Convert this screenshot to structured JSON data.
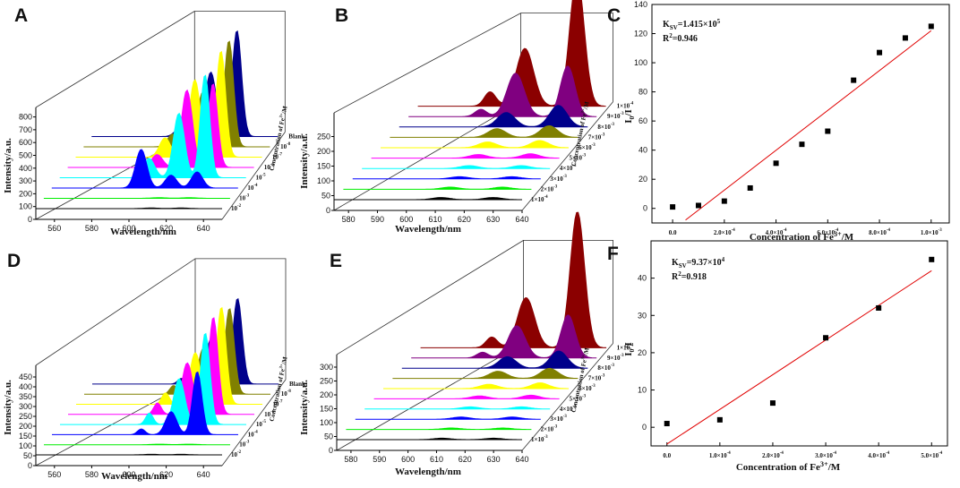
{
  "chart_data": [
    {
      "id": "A",
      "type": "waterfall",
      "title": "A",
      "xlabel": "Wavelength/nm",
      "ylabel": "Intensity/a.u.",
      "zlabel": "Concentration of Fe3+/M",
      "zlabel_parts": [
        "Concentration of Fe",
        "3+",
        "/M"
      ],
      "xlim": [
        550,
        650
      ],
      "x_ticks": [
        560,
        580,
        600,
        620,
        640
      ],
      "ylim": [
        0,
        800
      ],
      "y_ticks": [
        0,
        100,
        200,
        300,
        400,
        500,
        600,
        700,
        800
      ],
      "z_labels": [
        {
          "base": "10",
          "exp": "-2"
        },
        {
          "base": "10",
          "exp": "-3"
        },
        {
          "base": "10",
          "exp": "-4"
        },
        {
          "base": "10",
          "exp": "-5"
        },
        {
          "base": "10",
          "exp": "-6"
        },
        {
          "base": "10",
          "exp": "-7"
        },
        {
          "base": "10",
          "exp": "-8"
        },
        {
          "base": "Blank",
          "exp": ""
        }
      ],
      "z_label_series": [
        0,
        2,
        4,
        6,
        8,
        10,
        12,
        14
      ],
      "series": [
        {
          "name": "s1",
          "color": "#000000",
          "peaks": [
            [
              612,
              2,
              4
            ],
            [
              628,
              2,
              4
            ]
          ]
        },
        {
          "name": "s2",
          "color": "#00ee00",
          "peaks": [
            [
              612,
              2,
              4
            ],
            [
              628,
              2,
              4
            ]
          ]
        },
        {
          "name": "s3",
          "color": "#0000ff",
          "peaks": [
            [
              598,
              120,
              3
            ],
            [
              614,
              40,
              3
            ],
            [
              628,
              50,
              3
            ]
          ]
        },
        {
          "name": "s4",
          "color": "#00ffff",
          "peaks": [
            [
              598,
              60,
              3
            ],
            [
              614,
              200,
              3
            ],
            [
              628,
              320,
              2.5
            ]
          ]
        },
        {
          "name": "s5",
          "color": "#ff00ff",
          "peaks": [
            [
              598,
              40,
              3
            ],
            [
              614,
              240,
              3
            ],
            [
              628,
              260,
              2.5
            ]
          ]
        },
        {
          "name": "s6",
          "color": "#ffff00",
          "peaks": [
            [
              598,
              60,
              3
            ],
            [
              614,
              240,
              3
            ],
            [
              628,
              330,
              2.5
            ]
          ]
        },
        {
          "name": "s7",
          "color": "#808000",
          "peaks": [
            [
              598,
              40,
              3
            ],
            [
              614,
              170,
              3
            ],
            [
              628,
              330,
              2.5
            ]
          ]
        },
        {
          "name": "s8",
          "color": "#00008b",
          "peaks": [
            [
              598,
              30,
              3
            ],
            [
              614,
              200,
              3
            ],
            [
              628,
              330,
              2.5
            ]
          ]
        }
      ]
    },
    {
      "id": "B",
      "type": "waterfall",
      "title": "B",
      "xlabel": "Wavelength/nm",
      "ylabel": "Intensity/a.u.",
      "zlabel": "Concentration of Fe3+/M",
      "zlabel_parts": [
        "Concentration of Fe",
        "3+",
        "/M"
      ],
      "xlim": [
        575,
        640
      ],
      "x_ticks": [
        580,
        590,
        600,
        610,
        620,
        630,
        640
      ],
      "ylim": [
        0,
        250
      ],
      "y_ticks": [
        0,
        50,
        100,
        150,
        200,
        250
      ],
      "z_labels": [
        {
          "base": "1×10",
          "exp": "-4"
        },
        {
          "base": "2×10",
          "exp": "-3"
        },
        {
          "base": "3×10",
          "exp": "-3"
        },
        {
          "base": "4×10",
          "exp": "-3"
        },
        {
          "base": "5×10",
          "exp": "-3"
        },
        {
          "base": "6×10",
          "exp": "-3"
        },
        {
          "base": "7×10",
          "exp": "-3"
        },
        {
          "base": "8×10",
          "exp": "-3"
        },
        {
          "base": "9×10",
          "exp": "-3"
        },
        {
          "base": "1×10",
          "exp": "-4"
        }
      ],
      "z_label_series": [
        0,
        1,
        2,
        3,
        4,
        5,
        6,
        7,
        8,
        9
      ],
      "series": [
        {
          "name": "s1",
          "color": "#000000",
          "peaks": [
            [
              612,
              3,
              3
            ],
            [
              630,
              3,
              3
            ]
          ]
        },
        {
          "name": "s2",
          "color": "#00ee00",
          "peaks": [
            [
              612,
              3,
              3
            ],
            [
              630,
              3,
              3
            ]
          ]
        },
        {
          "name": "s3",
          "color": "#0000ff",
          "peaks": [
            [
              612,
              3,
              3
            ],
            [
              630,
              3,
              3
            ]
          ]
        },
        {
          "name": "s4",
          "color": "#00ffff",
          "peaks": [
            [
              612,
              4,
              3
            ],
            [
              630,
              4,
              3
            ]
          ]
        },
        {
          "name": "s5",
          "color": "#ff00ff",
          "peaks": [
            [
              612,
              5,
              3
            ],
            [
              630,
              6,
              3
            ]
          ]
        },
        {
          "name": "s6",
          "color": "#ffff00",
          "peaks": [
            [
              612,
              8,
              3
            ],
            [
              630,
              10,
              3
            ]
          ]
        },
        {
          "name": "s7",
          "color": "#808000",
          "peaks": [
            [
              612,
              12,
              3
            ],
            [
              630,
              16,
              3
            ]
          ]
        },
        {
          "name": "s8",
          "color": "#00008b",
          "peaks": [
            [
              612,
              20,
              3
            ],
            [
              630,
              30,
              3
            ]
          ]
        },
        {
          "name": "s9",
          "color": "#800080",
          "peaks": [
            [
              600,
              10,
              2
            ],
            [
              612,
              60,
              3
            ],
            [
              630,
              70,
              2.5
            ]
          ]
        },
        {
          "name": "s10",
          "color": "#8b0000",
          "peaks": [
            [
              600,
              20,
              2
            ],
            [
              612,
              80,
              3
            ],
            [
              630,
              180,
              2.5
            ]
          ]
        }
      ]
    },
    {
      "id": "C",
      "type": "scatter",
      "title": "C",
      "xlabel": "Concentration of Fe3+/M",
      "xlabel_parts": [
        "Concentration of Fe",
        "3+",
        "/M"
      ],
      "ylabel": "I0/I",
      "annotation": {
        "ksv_base": "1.415×10",
        "ksv_exp": "5",
        "r2": "=0.946"
      },
      "xlim": [
        -8e-05,
        0.00107
      ],
      "ylim": [
        -10,
        140
      ],
      "x_ticks": [
        0,
        0.0002,
        0.0004,
        0.0006,
        0.0008,
        0.001
      ],
      "x_tick_labels": [
        {
          "base": "0.0",
          "exp": ""
        },
        {
          "base": "2.0×10",
          "exp": "-4"
        },
        {
          "base": "4.0×10",
          "exp": "-4"
        },
        {
          "base": "6.0×10",
          "exp": "-4"
        },
        {
          "base": "8.0×10",
          "exp": "-4"
        },
        {
          "base": "1.0×10",
          "exp": "-3"
        }
      ],
      "y_ticks": [
        0,
        20,
        40,
        60,
        80,
        100,
        120,
        140
      ],
      "x": [
        0,
        0.0001,
        0.0002,
        0.0003,
        0.0004,
        0.0005,
        0.0006,
        0.0007,
        0.0008,
        0.0009,
        0.001
      ],
      "y": [
        1,
        2,
        5,
        14,
        31,
        44,
        53,
        88,
        107,
        117,
        125
      ],
      "fit": {
        "x": [
          5e-05,
          0.001
        ],
        "y": [
          -8,
          122
        ]
      }
    },
    {
      "id": "D",
      "type": "waterfall",
      "title": "D",
      "xlabel": "Wavelength/nm",
      "ylabel": "Intensity/a.u.",
      "zlabel": "Concentration of Fe3+/M",
      "zlabel_parts": [
        "Concentration of Fe",
        "3+",
        "/M"
      ],
      "xlim": [
        550,
        650
      ],
      "x_ticks": [
        560,
        580,
        600,
        620,
        640
      ],
      "ylim": [
        0,
        450
      ],
      "y_ticks": [
        0,
        50,
        100,
        150,
        200,
        250,
        300,
        350,
        400,
        450
      ],
      "z_labels": [
        {
          "base": "10",
          "exp": "-2"
        },
        {
          "base": "10",
          "exp": "-3"
        },
        {
          "base": "10",
          "exp": "-4"
        },
        {
          "base": "10",
          "exp": "-5"
        },
        {
          "base": "10",
          "exp": "-6"
        },
        {
          "base": "10",
          "exp": "-7"
        },
        {
          "base": "10",
          "exp": "-8"
        },
        {
          "base": "Blank",
          "exp": ""
        }
      ],
      "z_label_series": [
        0,
        2,
        4,
        6,
        8,
        10,
        12,
        14
      ],
      "series": [
        {
          "name": "s1",
          "color": "#000000",
          "peaks": [
            [
              612,
              1,
              4
            ],
            [
              628,
              1,
              4
            ]
          ]
        },
        {
          "name": "s2",
          "color": "#00ee00",
          "peaks": [
            [
              612,
              1,
              4
            ],
            [
              628,
              1,
              4
            ]
          ]
        },
        {
          "name": "s3",
          "color": "#0000ff",
          "peaks": [
            [
              598,
              10,
              2
            ],
            [
              614,
              40,
              3
            ],
            [
              628,
              110,
              2.5
            ]
          ]
        },
        {
          "name": "s4",
          "color": "#00ffff",
          "peaks": [
            [
              598,
              20,
              2
            ],
            [
              614,
              80,
              3
            ],
            [
              628,
              160,
              2.5
            ]
          ]
        },
        {
          "name": "s5",
          "color": "#ff00ff",
          "peaks": [
            [
              598,
              20,
              2
            ],
            [
              614,
              90,
              3
            ],
            [
              628,
              170,
              2.5
            ]
          ]
        },
        {
          "name": "s6",
          "color": "#ffff00",
          "peaks": [
            [
              598,
              20,
              2
            ],
            [
              614,
              90,
              3
            ],
            [
              628,
              170,
              2.5
            ]
          ]
        },
        {
          "name": "s7",
          "color": "#808000",
          "peaks": [
            [
              598,
              15,
              2
            ],
            [
              614,
              80,
              3
            ],
            [
              628,
              150,
              2.5
            ]
          ]
        },
        {
          "name": "s8",
          "color": "#00008b",
          "peaks": [
            [
              598,
              10,
              2
            ],
            [
              614,
              80,
              3
            ],
            [
              628,
              150,
              2.5
            ]
          ]
        }
      ]
    },
    {
      "id": "E",
      "type": "waterfall",
      "title": "E",
      "xlabel": "Wavelength/nm",
      "ylabel": "Intensity/a.u.",
      "zlabel": "Concentration of Fe3+/M",
      "zlabel_parts": [
        "Concentration of Fe",
        "3+",
        "/M"
      ],
      "xlim": [
        575,
        640
      ],
      "x_ticks": [
        580,
        590,
        600,
        610,
        620,
        630,
        640
      ],
      "ylim": [
        0,
        300
      ],
      "y_ticks": [
        0,
        50,
        100,
        150,
        200,
        250,
        300
      ],
      "z_labels": [
        {
          "base": "1×10",
          "exp": "-3"
        },
        {
          "base": "2×10",
          "exp": "-3"
        },
        {
          "base": "3×10",
          "exp": "-3"
        },
        {
          "base": "4×10",
          "exp": "-3"
        },
        {
          "base": "5×10",
          "exp": "-3"
        },
        {
          "base": "6×10",
          "exp": "-3"
        },
        {
          "base": "7×10",
          "exp": "-3"
        },
        {
          "base": "8×10",
          "exp": "-3"
        },
        {
          "base": "9×10",
          "exp": "-3"
        },
        {
          "base": "1×10",
          "exp": "-4"
        }
      ],
      "z_label_series": [
        0,
        1,
        2,
        3,
        4,
        5,
        6,
        7,
        8,
        9
      ],
      "series": [
        {
          "name": "s1",
          "color": "#000000",
          "peaks": [
            [
              612,
              2,
              3
            ],
            [
              630,
              2,
              3
            ]
          ]
        },
        {
          "name": "s2",
          "color": "#00ee00",
          "peaks": [
            [
              612,
              2,
              3
            ],
            [
              630,
              2,
              3
            ]
          ]
        },
        {
          "name": "s3",
          "color": "#0000ff",
          "peaks": [
            [
              612,
              3,
              3
            ],
            [
              630,
              3,
              3
            ]
          ]
        },
        {
          "name": "s4",
          "color": "#00ffff",
          "peaks": [
            [
              612,
              3,
              3
            ],
            [
              630,
              3,
              3
            ]
          ]
        },
        {
          "name": "s5",
          "color": "#ff00ff",
          "peaks": [
            [
              612,
              4,
              3
            ],
            [
              630,
              5,
              3
            ]
          ]
        },
        {
          "name": "s6",
          "color": "#ffff00",
          "peaks": [
            [
              612,
              6,
              3
            ],
            [
              630,
              8,
              3
            ]
          ]
        },
        {
          "name": "s7",
          "color": "#808000",
          "peaks": [
            [
              612,
              10,
              3
            ],
            [
              630,
              14,
              3
            ]
          ]
        },
        {
          "name": "s8",
          "color": "#00008b",
          "peaks": [
            [
              612,
              16,
              3
            ],
            [
              630,
              24,
              3
            ]
          ]
        },
        {
          "name": "s9",
          "color": "#800080",
          "peaks": [
            [
              600,
              8,
              2
            ],
            [
              612,
              45,
              3
            ],
            [
              630,
              60,
              2.5
            ]
          ]
        },
        {
          "name": "s10",
          "color": "#8b0000",
          "peaks": [
            [
              600,
              15,
              2
            ],
            [
              612,
              70,
              3
            ],
            [
              630,
              190,
              2.5
            ]
          ]
        }
      ]
    },
    {
      "id": "F",
      "type": "scatter",
      "title": "F",
      "xlabel": "Concentration of Fe3+/M",
      "xlabel_parts": [
        "Concentration of Fe",
        "3+",
        "/M"
      ],
      "ylabel": "I0/I",
      "annotation": {
        "ksv_base": "=9.37×10",
        "ksv_exp": "4",
        "r2": "=0.918"
      },
      "xlim": [
        -3e-05,
        0.00053
      ],
      "ylim": [
        -5,
        50
      ],
      "x_ticks": [
        0,
        0.0001,
        0.0002,
        0.0003,
        0.0004,
        0.0005
      ],
      "x_tick_labels": [
        {
          "base": "0.0",
          "exp": ""
        },
        {
          "base": "1.0×10",
          "exp": "-4"
        },
        {
          "base": "2.0×10",
          "exp": "-4"
        },
        {
          "base": "3.0×10",
          "exp": "-4"
        },
        {
          "base": "4.0×10",
          "exp": "-4"
        },
        {
          "base": "5.0×10",
          "exp": "-4"
        }
      ],
      "y_ticks": [
        0,
        10,
        20,
        30,
        40
      ],
      "x": [
        0,
        0.0001,
        0.0002,
        0.0003,
        0.0004,
        0.0005
      ],
      "y": [
        1,
        2,
        6.5,
        24,
        32,
        45
      ],
      "fit": {
        "x": [
          0,
          0.0005
        ],
        "y": [
          -4.5,
          42
        ]
      }
    }
  ]
}
